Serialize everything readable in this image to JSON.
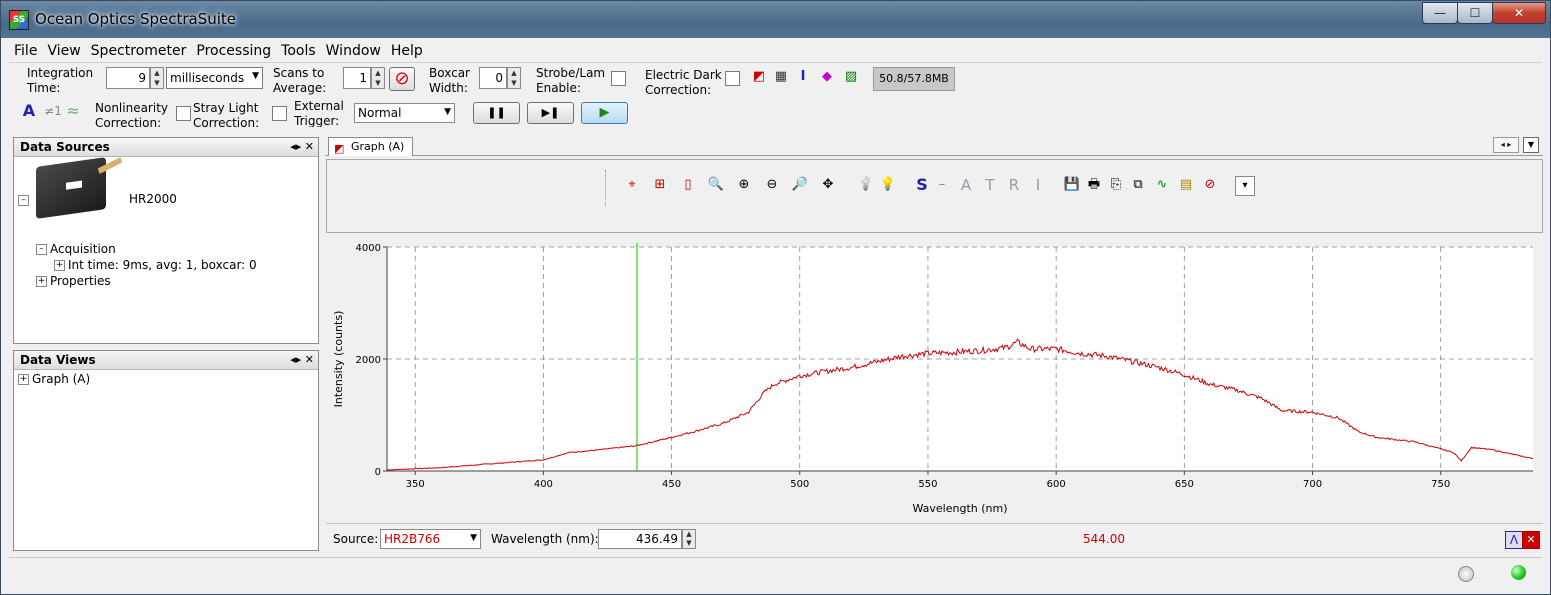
{
  "window": {
    "title": "Ocean Optics SpectraSuite",
    "app_icon": "SS",
    "minimize": "—",
    "maximize": "☐",
    "close": "✕"
  },
  "menu": [
    "File",
    "View",
    "Spectrometer",
    "Processing",
    "Tools",
    "Window",
    "Help"
  ],
  "toolbar": {
    "integration_label": "Integration Time:",
    "integration_value": "9",
    "integration_unit": "milliseconds",
    "scans_label": "Scans to Average:",
    "scans_value": "1",
    "boxcar_label": "Boxcar Width:",
    "boxcar_value": "0",
    "strobe_label": "Strobe/Lamp Enable:",
    "electric_dark_label": "Electric Dark Correction:",
    "memory": "50.8/57.8MB",
    "nonlinearity_label": "Nonlinearity Correction:",
    "stray_light_label": "Stray Light Correction:",
    "external_trigger_label": "External Trigger:",
    "trigger_mode": "Normal",
    "pause_glyph": "❚❚",
    "step_glyph": "▶❚",
    "play_glyph": "▶",
    "stop_glyph": "⊘",
    "ann_a": "A",
    "ann_ne1": "≠1",
    "ann_wave": "≈"
  },
  "data_sources": {
    "title": "Data Sources",
    "device": "HR2000",
    "acquisition": "Acquisition",
    "int_time": "Int time: 9ms, avg: 1, boxcar: 0",
    "properties": "Properties"
  },
  "data_views": {
    "title": "Data Views",
    "graph": "Graph (A)"
  },
  "panel_controls": "◂▸ ✕",
  "graph_tab": {
    "label": "Graph (A)"
  },
  "graph_tools": [
    "⌖",
    "⊞",
    "▯",
    "🔍",
    "⊕",
    "⊖",
    "🔎",
    "✥",
    "💡",
    "💡",
    "S",
    "–",
    "A",
    "T",
    "R",
    "I",
    "💾",
    "🖶",
    "⎘",
    "⧉",
    "∿",
    "▤",
    "⊘",
    "▾"
  ],
  "chart_data": {
    "type": "line",
    "xlabel": "Wavelength (nm)",
    "ylabel": "Intensity (counts)",
    "xlim": [
      339,
      786
    ],
    "ylim": [
      0,
      4000
    ],
    "xticks": [
      350,
      400,
      450,
      500,
      550,
      600,
      650,
      700,
      750
    ],
    "yticks": [
      0,
      2000,
      4000
    ],
    "grid": true,
    "cursor_x": 436.49,
    "line_color": "#cc0000",
    "cursor_color": "#00cc00",
    "series": [
      {
        "x": [
          339,
          360,
          380,
          400,
          410,
          420,
          436,
          450,
          460,
          470,
          480,
          486,
          490,
          500,
          510,
          520,
          530,
          540,
          550,
          560,
          570,
          580,
          585,
          590,
          600,
          610,
          620,
          630,
          640,
          650,
          660,
          670,
          680,
          688,
          700,
          710,
          718,
          725,
          740,
          755,
          758,
          762,
          770,
          786
        ],
        "y": [
          20,
          60,
          130,
          200,
          330,
          370,
          450,
          600,
          720,
          850,
          1050,
          1400,
          1550,
          1700,
          1780,
          1850,
          1950,
          2050,
          2100,
          2120,
          2150,
          2200,
          2300,
          2180,
          2180,
          2100,
          2050,
          1950,
          1850,
          1720,
          1550,
          1450,
          1300,
          1080,
          1050,
          950,
          700,
          600,
          520,
          330,
          180,
          420,
          380,
          220
        ]
      }
    ]
  },
  "status": {
    "source_label": "Source:",
    "source_value": "HR2B766",
    "wavelength_label": "Wavelength (nm):",
    "wavelength_value": "436.49",
    "intensity_value": "544.00"
  }
}
